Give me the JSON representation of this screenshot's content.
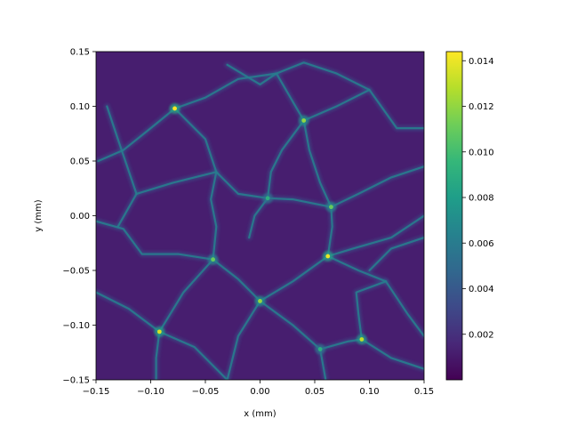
{
  "chart_data": {
    "type": "heatmap",
    "title": "",
    "xlabel": "x (mm)",
    "ylabel": "y (mm)",
    "xlim": [
      -0.15,
      0.15
    ],
    "ylim": [
      -0.15,
      0.15
    ],
    "x_ticks": [
      -0.15,
      -0.1,
      -0.05,
      0.0,
      0.05,
      0.1,
      0.15
    ],
    "x_tick_labels": [
      "−0.15",
      "−0.10",
      "−0.05",
      "0.00",
      "0.05",
      "0.10",
      "0.15"
    ],
    "y_ticks": [
      -0.15,
      -0.1,
      -0.05,
      0.0,
      0.05,
      0.1,
      0.15
    ],
    "y_tick_labels": [
      "−0.15",
      "−0.10",
      "−0.05",
      "0.00",
      "0.05",
      "0.10",
      "0.15"
    ],
    "colormap": "viridis",
    "colorbar": {
      "range": [
        0.0,
        0.0144
      ],
      "ticks": [
        0.002,
        0.004,
        0.006,
        0.008,
        0.01,
        0.012,
        0.014
      ],
      "tick_labels": [
        "0.002",
        "0.004",
        "0.006",
        "0.008",
        "0.010",
        "0.012",
        "0.014"
      ]
    },
    "background_value": 0.0012,
    "grid": false,
    "ridges": [
      [
        [
          -0.15,
          -0.005
        ],
        [
          -0.125,
          -0.012
        ],
        [
          -0.108,
          -0.035
        ],
        [
          -0.075,
          -0.035
        ],
        [
          -0.043,
          -0.04
        ]
      ],
      [
        [
          -0.043,
          -0.04
        ],
        [
          -0.04,
          -0.01
        ],
        [
          -0.045,
          0.015
        ],
        [
          -0.04,
          0.04
        ]
      ],
      [
        [
          -0.043,
          -0.04
        ],
        [
          -0.02,
          -0.058
        ],
        [
          0.0,
          -0.078
        ]
      ],
      [
        [
          0.0,
          -0.078
        ],
        [
          0.03,
          -0.06
        ],
        [
          0.062,
          -0.037
        ]
      ],
      [
        [
          0.062,
          -0.037
        ],
        [
          0.066,
          -0.01
        ],
        [
          0.065,
          0.008
        ]
      ],
      [
        [
          0.065,
          0.008
        ],
        [
          0.03,
          0.015
        ],
        [
          0.007,
          0.016
        ],
        [
          -0.005,
          0.0
        ],
        [
          -0.01,
          -0.02
        ]
      ],
      [
        [
          0.065,
          0.008
        ],
        [
          0.09,
          0.02
        ],
        [
          0.12,
          0.035
        ],
        [
          0.15,
          0.045
        ]
      ],
      [
        [
          0.062,
          -0.037
        ],
        [
          0.085,
          -0.03
        ],
        [
          0.12,
          -0.02
        ],
        [
          0.15,
          0.0
        ]
      ],
      [
        [
          0.062,
          -0.037
        ],
        [
          0.09,
          -0.05
        ],
        [
          0.115,
          -0.06
        ]
      ],
      [
        [
          0.115,
          -0.06
        ],
        [
          0.135,
          -0.09
        ],
        [
          0.15,
          -0.11
        ]
      ],
      [
        [
          -0.078,
          0.098
        ],
        [
          -0.05,
          0.07
        ],
        [
          -0.04,
          0.04
        ]
      ],
      [
        [
          -0.078,
          0.098
        ],
        [
          -0.1,
          0.08
        ],
        [
          -0.125,
          0.06
        ],
        [
          -0.148,
          0.05
        ]
      ],
      [
        [
          -0.04,
          0.04
        ],
        [
          -0.08,
          0.03
        ],
        [
          -0.113,
          0.02
        ],
        [
          -0.13,
          -0.01
        ]
      ],
      [
        [
          -0.04,
          0.04
        ],
        [
          -0.02,
          0.02
        ],
        [
          0.007,
          0.016
        ]
      ],
      [
        [
          0.04,
          0.087
        ],
        [
          0.02,
          0.06
        ],
        [
          0.01,
          0.04
        ],
        [
          0.007,
          0.016
        ]
      ],
      [
        [
          0.04,
          0.087
        ],
        [
          0.045,
          0.06
        ],
        [
          0.055,
          0.03
        ],
        [
          0.065,
          0.008
        ]
      ],
      [
        [
          -0.078,
          0.098
        ],
        [
          -0.05,
          0.108
        ],
        [
          -0.02,
          0.125
        ],
        [
          0.015,
          0.13
        ],
        [
          0.04,
          0.087
        ]
      ],
      [
        [
          0.04,
          0.087
        ],
        [
          0.07,
          0.1
        ],
        [
          0.1,
          0.115
        ],
        [
          0.125,
          0.08
        ],
        [
          0.15,
          0.08
        ]
      ],
      [
        [
          0.015,
          0.13
        ],
        [
          0.04,
          0.14
        ],
        [
          0.07,
          0.13
        ],
        [
          0.1,
          0.115
        ]
      ],
      [
        [
          0.0,
          -0.078
        ],
        [
          -0.02,
          -0.11
        ],
        [
          -0.03,
          -0.15
        ]
      ],
      [
        [
          0.0,
          -0.078
        ],
        [
          0.03,
          -0.1
        ],
        [
          0.055,
          -0.122
        ]
      ],
      [
        [
          0.055,
          -0.122
        ],
        [
          0.08,
          -0.115
        ],
        [
          0.093,
          -0.113
        ]
      ],
      [
        [
          0.093,
          -0.113
        ],
        [
          0.09,
          -0.09
        ],
        [
          0.088,
          -0.07
        ],
        [
          0.115,
          -0.06
        ]
      ],
      [
        [
          0.093,
          -0.113
        ],
        [
          0.12,
          -0.13
        ],
        [
          0.15,
          -0.14
        ]
      ],
      [
        [
          0.055,
          -0.122
        ],
        [
          0.06,
          -0.15
        ]
      ],
      [
        [
          -0.092,
          -0.106
        ],
        [
          -0.07,
          -0.07
        ],
        [
          -0.043,
          -0.04
        ]
      ],
      [
        [
          -0.092,
          -0.106
        ],
        [
          -0.12,
          -0.085
        ],
        [
          -0.15,
          -0.07
        ]
      ],
      [
        [
          -0.092,
          -0.106
        ],
        [
          -0.095,
          -0.13
        ],
        [
          -0.095,
          -0.15
        ]
      ],
      [
        [
          -0.092,
          -0.106
        ],
        [
          -0.06,
          -0.12
        ],
        [
          -0.03,
          -0.15
        ]
      ],
      [
        [
          -0.113,
          0.02
        ],
        [
          -0.13,
          0.07
        ],
        [
          -0.14,
          0.1
        ]
      ],
      [
        [
          -0.03,
          0.138
        ],
        [
          0.0,
          0.12
        ],
        [
          0.015,
          0.13
        ]
      ],
      [
        [
          0.1,
          -0.05
        ],
        [
          0.12,
          -0.03
        ],
        [
          0.15,
          -0.02
        ]
      ]
    ],
    "hotspots": [
      {
        "x": -0.078,
        "y": 0.098,
        "value": 0.0144
      },
      {
        "x": 0.04,
        "y": 0.087,
        "value": 0.012
      },
      {
        "x": 0.065,
        "y": 0.008,
        "value": 0.011
      },
      {
        "x": 0.007,
        "y": 0.016,
        "value": 0.009
      },
      {
        "x": -0.043,
        "y": -0.04,
        "value": 0.011
      },
      {
        "x": 0.062,
        "y": -0.037,
        "value": 0.014
      },
      {
        "x": 0.0,
        "y": -0.078,
        "value": 0.012
      },
      {
        "x": -0.092,
        "y": -0.106,
        "value": 0.0135
      },
      {
        "x": 0.093,
        "y": -0.113,
        "value": 0.013
      },
      {
        "x": 0.055,
        "y": -0.122,
        "value": 0.009
      }
    ]
  }
}
